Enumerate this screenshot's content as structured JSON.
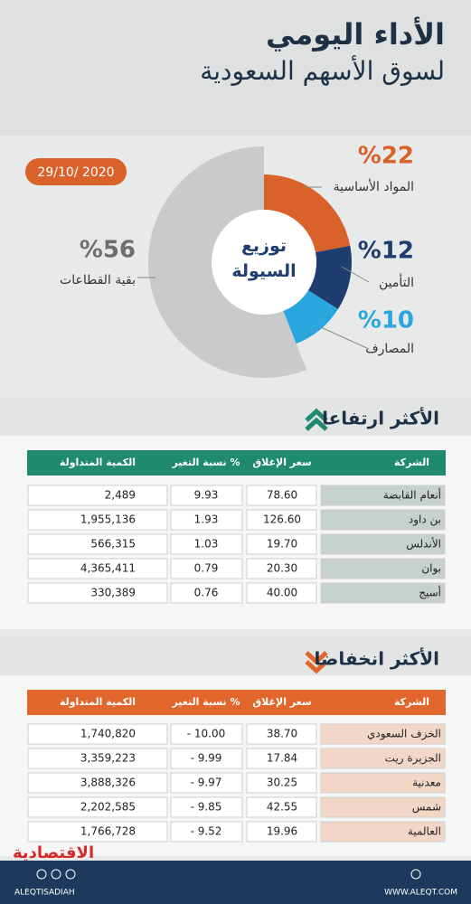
{
  "header": {
    "title": "الأداء اليومي",
    "subtitle": "لسوق الأسهم السعودية",
    "date": "29/10/ 2020"
  },
  "chart_data": {
    "type": "pie",
    "title": "توزيع السيولة",
    "categories": [
      "المواد الأساسية",
      "التأمين",
      "المصارف",
      "بقية القطاعات"
    ],
    "values": [
      22,
      12,
      10,
      56
    ],
    "value_labels": [
      "%22",
      "%12",
      "%10",
      "%56"
    ],
    "colors": [
      "#d9622b",
      "#1f3d6e",
      "#2aa7df",
      "#c9cacc"
    ]
  },
  "gainers": {
    "title": "الأكثر ارتفاعا",
    "color": "#1f8a6c",
    "cell_color": "#c7d2cf",
    "columns": [
      "الشركة",
      "سعر الإغلاق",
      "نسبة التغير %",
      "الكمية المتداولة"
    ],
    "rows": [
      [
        "أنعام القابضة",
        "78.60",
        "9.93",
        "2,489"
      ],
      [
        "بن داود",
        "126.60",
        "1.93",
        "1,955,136"
      ],
      [
        "الأندلس",
        "19.70",
        "1.03",
        "566,315"
      ],
      [
        "بوان",
        "20.30",
        "0.79",
        "4,365,411"
      ],
      [
        "أسيج",
        "40.00",
        "0.76",
        "330,389"
      ]
    ]
  },
  "losers": {
    "title": "الأكثر انخفاضا",
    "color": "#e0662b",
    "cell_color": "#f2d7c7",
    "columns": [
      "الشركة",
      "سعر الإغلاق",
      "نسبة التغير %",
      "الكمية المتداولة"
    ],
    "rows": [
      [
        "الخزف السعودي",
        "38.70",
        "- 10.00",
        "1,740,820"
      ],
      [
        "الجزيرة ريت",
        "17.84",
        "- 9.99",
        "3,359,223"
      ],
      [
        "معدنية",
        "30.25",
        "- 9.97",
        "3,888,326"
      ],
      [
        "شمس",
        "42.55",
        "- 9.85",
        "2,202,585"
      ],
      [
        "العالمية",
        "19.96",
        "- 9.52",
        "1,766,728"
      ]
    ]
  },
  "footer": {
    "logo": "الاقتصادية",
    "handle": "ALEQTISADIAH",
    "website": "WWW.ALEQT.COM"
  }
}
